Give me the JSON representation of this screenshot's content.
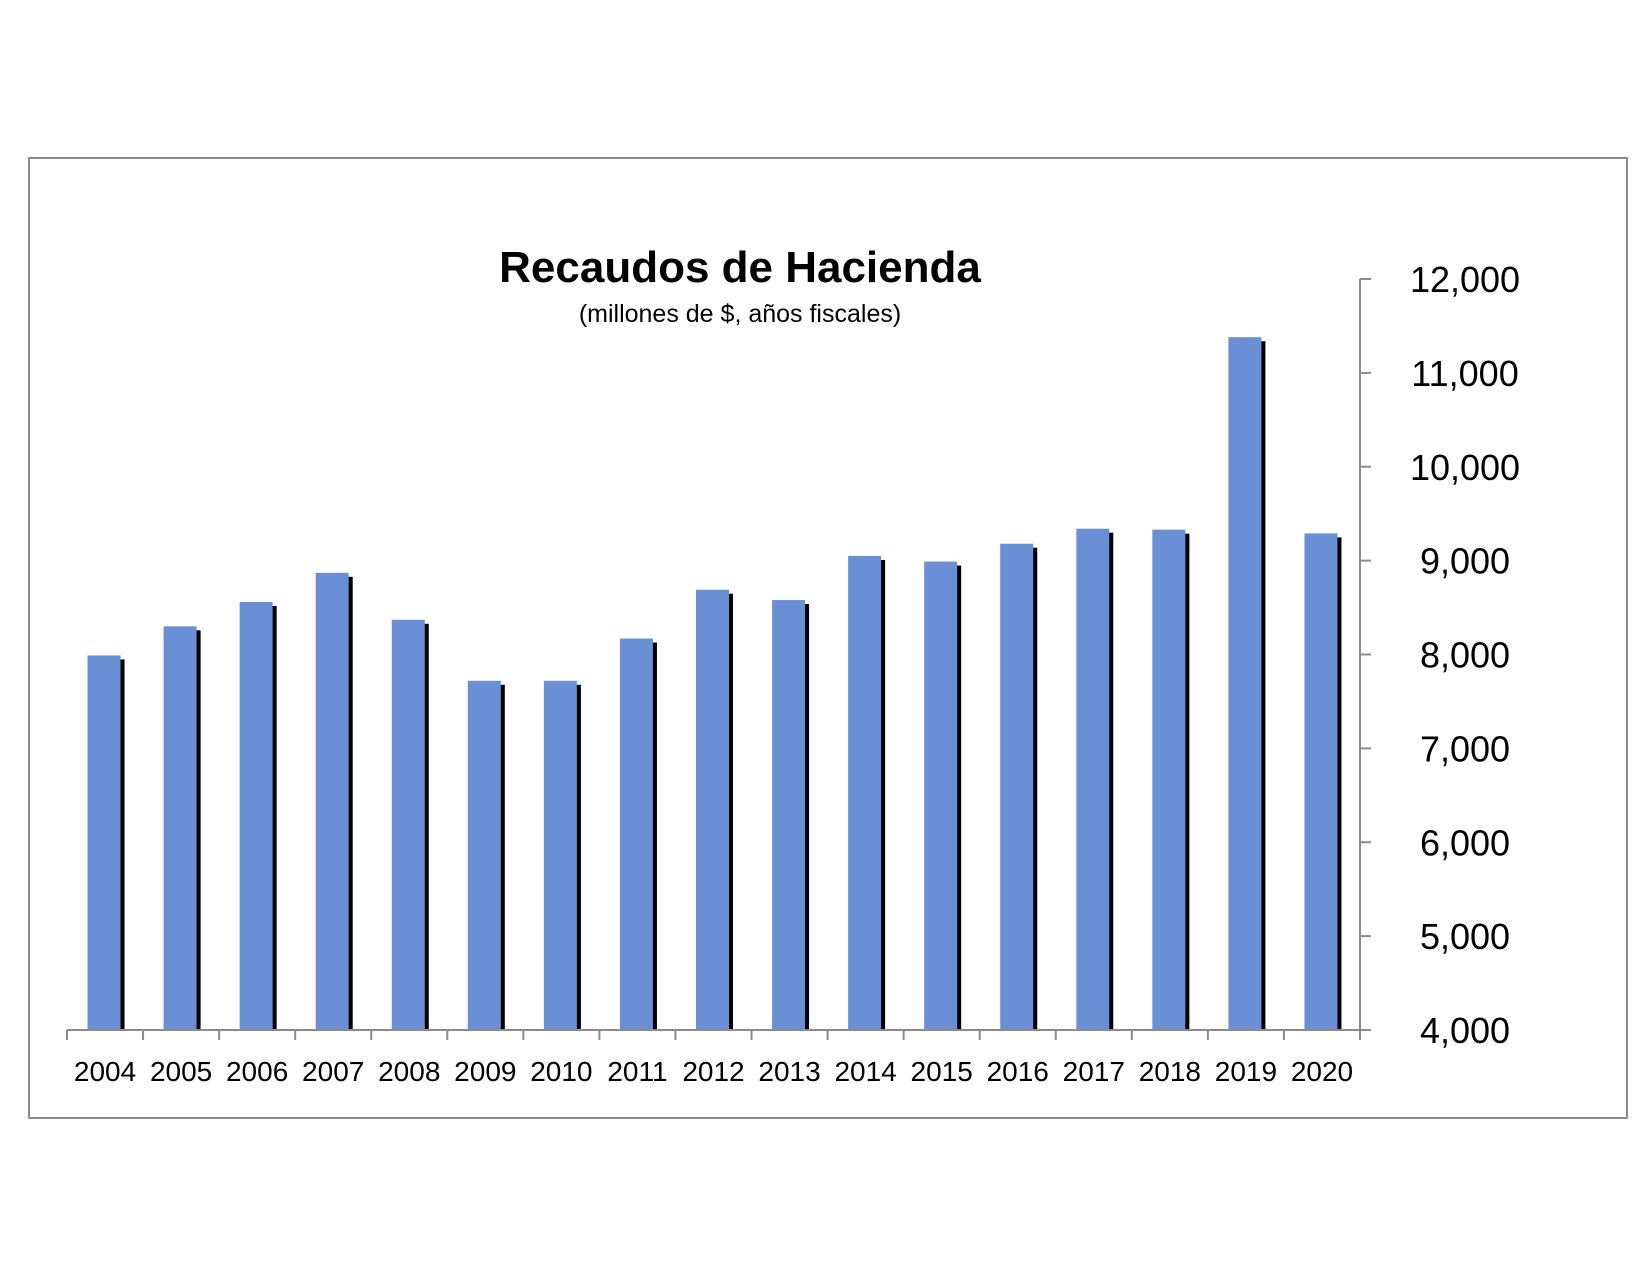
{
  "chart_data": {
    "type": "bar",
    "title": "Recaudos de Hacienda",
    "subtitle": "(millones de $, años fiscales)",
    "xlabel": "",
    "ylabel": "",
    "categories": [
      "2004",
      "2005",
      "2006",
      "2007",
      "2008",
      "2009",
      "2010",
      "2011",
      "2012",
      "2013",
      "2014",
      "2015",
      "2016",
      "2017",
      "2018",
      "2019",
      "2020"
    ],
    "values": [
      7990,
      8300,
      8560,
      8870,
      8370,
      7720,
      7720,
      8170,
      8690,
      8580,
      9050,
      8990,
      9180,
      9340,
      9330,
      11380,
      9290
    ],
    "ylim": [
      4000,
      12000
    ],
    "yticks": [
      4000,
      5000,
      6000,
      7000,
      8000,
      9000,
      10000,
      11000,
      12000
    ],
    "ytick_labels": [
      "4,000",
      "5,000",
      "6,000",
      "7,000",
      "8,000",
      "9,000",
      "10,000",
      "11,000",
      "12,000"
    ],
    "y_axis_position": "right",
    "grid": false,
    "legend": "none",
    "colors": {
      "bar": "#6a8fd4",
      "bar_shadow": "#000000",
      "axis": "#8c8c8c",
      "frame": "#8c8c8c"
    }
  }
}
